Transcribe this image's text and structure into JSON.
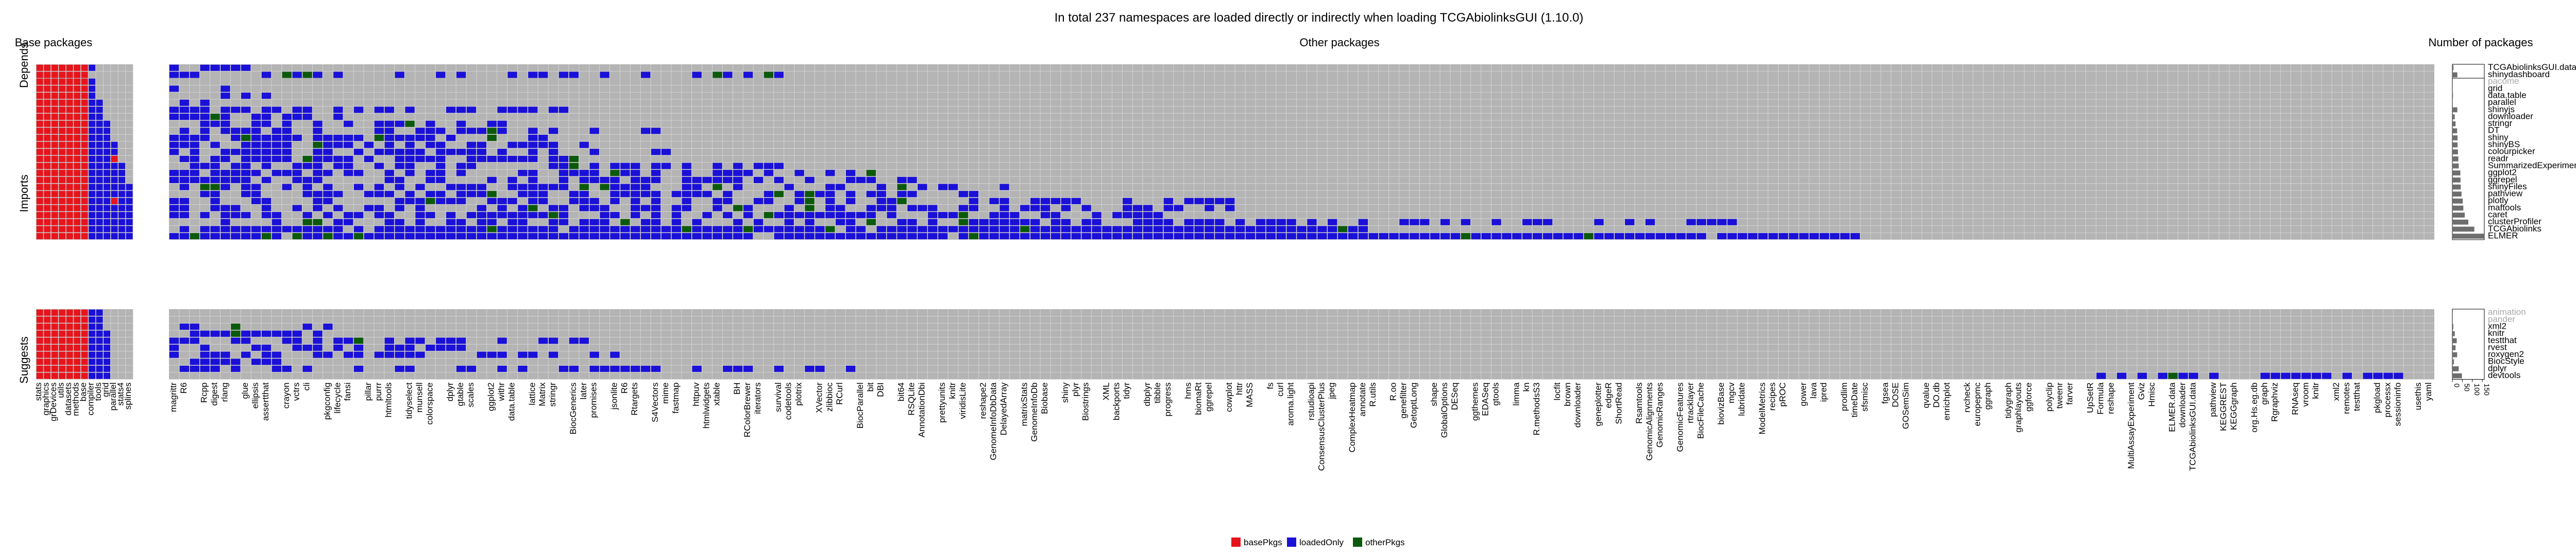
{
  "chart_data": {
    "type": "heatmap",
    "title": "In total 237 namespaces are loaded directly or indirectly when loading TCGAbiolinksGUI (1.10.0)",
    "panel_titles": {
      "base": "Base packages",
      "other": "Other packages",
      "count": "Number of packages"
    },
    "row_groups": [
      "Depends",
      "Imports",
      "Suggests"
    ],
    "legend": [
      {
        "name": "basePkgs",
        "color": "#e8141c"
      },
      {
        "name": "loadedOnly",
        "color": "#1a10d8"
      },
      {
        "name": "otherPkgs",
        "color": "#0b5a0b"
      }
    ],
    "colors": {
      "grid": "#b4b4b4",
      "cell_line": "#d6d6d6",
      "base": "#e8141c",
      "loaded": "#1a10d8",
      "other": "#0b5a0b",
      "bar": "#6e6e6e"
    },
    "depends_rows": [
      "TCGAbiolinksGUI.data",
      "shinydashboard"
    ],
    "imports_rows": [
      "pacome",
      "grid",
      "data.table",
      "parallel",
      "shinyjs",
      "downloader",
      "stringr",
      "DT",
      "shiny",
      "shinyBS",
      "colourpicker",
      "readr",
      "SummarizedExperiment",
      "ggplot2",
      "ggrepel",
      "shinyFiles",
      "pathview",
      "plotly",
      "maftools",
      "caret",
      "clusterProfiler",
      "TCGAbiolinks",
      "ELMER"
    ],
    "suggests_rows": [
      "animation",
      "pander",
      "xml2",
      "knitr",
      "testthat",
      "rvest",
      "roxygen2",
      "BiocStyle",
      "dplyr",
      "devtools"
    ],
    "greyed_rows": [
      "pacome",
      "animation",
      "pander"
    ],
    "base_columns": [
      "stats",
      "graphics",
      "grDevices",
      "utils",
      "datasets",
      "methods",
      "base",
      "compiler",
      "tools",
      "grid",
      "parallel",
      "stats4",
      "splines"
    ],
    "other_columns_labeled": [
      "magrittr",
      "R6",
      "Rcpp",
      "digest",
      "rlang",
      "glue",
      "ellipsis",
      "assertthat",
      "crayon",
      "vctrs",
      "cli",
      "pkgconfig",
      "lifecycle",
      "fansi",
      "pillar",
      "purrr",
      "htmltools",
      "tidyselect",
      "munsell",
      "colorspace",
      "dplyr",
      "gtable",
      "scales",
      "ggplot2",
      "withr",
      "data.table",
      "lattice",
      "Matrix",
      "stringr",
      "BiocGenerics",
      "later",
      "promises",
      "jsonlite",
      "R6",
      "Rtargets",
      "S4Vectors",
      "mime",
      "fastmap",
      "httpuv",
      "htmlwidgets",
      "xtable",
      "BH",
      "RColorBrewer",
      "iterators",
      "survival",
      "codetools",
      "plotrix",
      "XVector",
      "zlibbioc",
      "RCurl",
      "BiocParallel",
      "bit",
      "DBI",
      "bit64",
      "RSQLite",
      "AnnotationDbi",
      "prettyunits",
      "knitr",
      "viridisLite",
      "reshape2",
      "GenomeInfoDbData",
      "DelayedArray",
      "matrixStats",
      "GenomeInfoDb",
      "Biobase",
      "shiny",
      "plyr",
      "Biostrings",
      "XML",
      "backports",
      "tidyr",
      "dbplyr",
      "tibble",
      "progress",
      "hms",
      "biomaRt",
      "ggrepel",
      "cowplot",
      "httr",
      "MASS",
      "fs",
      "curl",
      "aroma.light",
      "rstudioapi",
      "ConsensusClusterPlus",
      "jpeg",
      "ComplexHeatmap",
      "annotate",
      "R.utils",
      "R.oo",
      "genefilter",
      "GetoptLong",
      "shape",
      "GlobalOptions",
      "DESeq",
      "ggthemes",
      "EDASeq",
      "gtools",
      "limma",
      "kn",
      "R.methodsS3",
      "locfit",
      "brown",
      "downloader",
      "geneplotter",
      "edgeR",
      "ShortRead",
      "Rsamtools",
      "GenomicAlignments",
      "GenomicRanges",
      "GenomicFeatures",
      "rtracklayer",
      "BiocFileCache",
      "biovizBase",
      "mgcv",
      "lubridate",
      "ModelMetrics",
      "recipes",
      "pROC",
      "gower",
      "lava",
      "ipred",
      "prodlim",
      "timeDate",
      "sfsmisc",
      "fgsea",
      "DOSE",
      "GOSemSim",
      "qvalue",
      "DO.db",
      "enrichplot",
      "rvcheck",
      "europepmc",
      "ggraph",
      "tidygraph",
      "graphlayouts",
      "ggforce",
      "polyclip",
      "tweenr",
      "farver",
      "UpSetR",
      "Formula",
      "reshape",
      "MultiAssayExperiment",
      "Gviz",
      "Hmisc",
      "ELMER.data",
      "downloader",
      "TCGAbiolinksGUI.data",
      "pathview",
      "KEGGREST",
      "KEGGgraph",
      "org.Hs.eg.db",
      "graph",
      "Rgraphviz",
      "RNAseq",
      "vroom",
      "knitr",
      "xml2",
      "remotes",
      "testthat",
      "pkgload",
      "processx",
      "sessioninfo",
      "usethis",
      "yaml"
    ],
    "n_other_columns": 221,
    "count_axis": {
      "ticks": [
        0,
        50,
        100,
        150
      ],
      "xlim": [
        0,
        160
      ]
    },
    "row_counts": {
      "TCGAbiolinksGUI.data": 6,
      "shinydashboard": 25,
      "pacome": 0,
      "grid": 2,
      "data.table": 3,
      "parallel": 2,
      "shinyjs": 25,
      "downloader": 12,
      "stringr": 16,
      "DT": 24,
      "shiny": 26,
      "shinyBS": 26,
      "colourpicker": 28,
      "readr": 30,
      "SummarizedExperiment": 32,
      "ggplot2": 40,
      "ggrepel": 41,
      "shinyFiles": 42,
      "pathview": 46,
      "plotly": 52,
      "maftools": 55,
      "caret": 62,
      "clusterProfiler": 80,
      "TCGAbiolinks": 110,
      "ELMER": 160,
      "animation": 0,
      "pander": 0,
      "xml2": 5,
      "knitr": 12,
      "testthat": 22,
      "rvest": 16,
      "roxygen2": 24,
      "BiocStyle": 8,
      "dplyr": 32,
      "devtools": 48
    }
  }
}
